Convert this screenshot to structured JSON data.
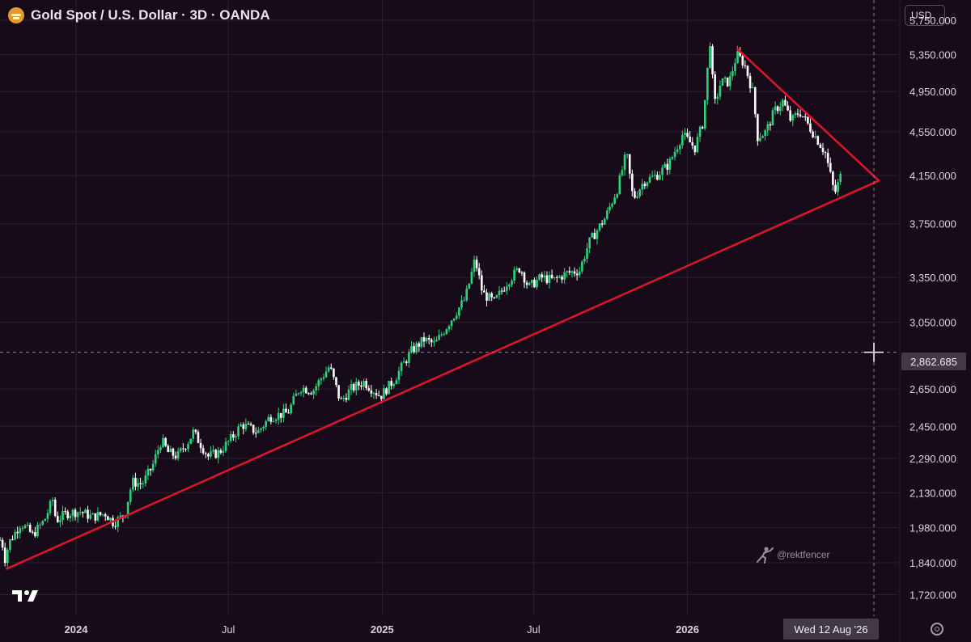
{
  "header": {
    "title": "Gold Spot / U.S. Dollar · 3D · OANDA",
    "currency": "USD"
  },
  "crosshair": {
    "price_label": "2,862.685",
    "date_label": "Wed 12 Aug '26"
  },
  "watermark": {
    "handle": "@rektfencer"
  },
  "colors": {
    "background": "#170b1a",
    "up_candle": "#2ed27a",
    "down_candle": "#ffffff",
    "trendline": "#e0142d",
    "grid": "#2a1f2d"
  },
  "chart_data": {
    "type": "candlestick",
    "scale": "log",
    "y_ticks": [
      5750,
      5350,
      4950,
      4550,
      4150,
      3750,
      3350,
      3050,
      2650,
      2450,
      2290,
      2130,
      1980,
      1840,
      1720
    ],
    "y_tick_labels": [
      "5,750.000",
      "5,350.000",
      "4,950.000",
      "4,550.000",
      "4,150.000",
      "3,750.000",
      "3,350.000",
      "3,050.000",
      "2,650.000",
      "2,450.000",
      "2,290.000",
      "2,130.000",
      "1,980.000",
      "1,840.000",
      "1,720.000"
    ],
    "x_ticks": [
      "2024-01-01",
      "2024-07-01",
      "2025-01-01",
      "2025-07-01",
      "2026-01-01"
    ],
    "x_tick_labels": [
      "2024",
      "Jul",
      "2025",
      "Jul",
      "2026"
    ],
    "x_range": [
      "2023-10-02",
      "2026-09-10"
    ],
    "y_range": [
      1650,
      6000
    ],
    "grid": true,
    "close_path": [
      [
        "2023-10-02",
        1930
      ],
      [
        "2023-10-05",
        1910
      ],
      [
        "2023-10-06",
        1830
      ],
      [
        "2023-10-13",
        1920
      ],
      [
        "2023-10-27",
        2000
      ],
      [
        "2023-11-10",
        1950
      ],
      [
        "2023-11-24",
        2010
      ],
      [
        "2023-12-04",
        2100
      ],
      [
        "2023-12-08",
        2010
      ],
      [
        "2023-12-20",
        2040
      ],
      [
        "2024-01-05",
        2050
      ],
      [
        "2024-01-20",
        2025
      ],
      [
        "2024-02-05",
        2040
      ],
      [
        "2024-02-15",
        2000
      ],
      [
        "2024-02-28",
        2035
      ],
      [
        "2024-03-08",
        2180
      ],
      [
        "2024-03-20",
        2170
      ],
      [
        "2024-04-01",
        2250
      ],
      [
        "2024-04-12",
        2380
      ],
      [
        "2024-04-20",
        2320
      ],
      [
        "2024-05-01",
        2300
      ],
      [
        "2024-05-15",
        2380
      ],
      [
        "2024-05-20",
        2420
      ],
      [
        "2024-06-07",
        2300
      ],
      [
        "2024-06-20",
        2320
      ],
      [
        "2024-07-05",
        2390
      ],
      [
        "2024-07-17",
        2460
      ],
      [
        "2024-08-05",
        2420
      ],
      [
        "2024-08-20",
        2500
      ],
      [
        "2024-09-10",
        2520
      ],
      [
        "2024-09-25",
        2660
      ],
      [
        "2024-10-10",
        2640
      ],
      [
        "2024-10-30",
        2780
      ],
      [
        "2024-11-12",
        2580
      ],
      [
        "2024-11-25",
        2650
      ],
      [
        "2024-12-10",
        2690
      ],
      [
        "2024-12-30",
        2610
      ],
      [
        "2025-01-15",
        2700
      ],
      [
        "2025-02-05",
        2870
      ],
      [
        "2025-02-20",
        2940
      ],
      [
        "2025-03-05",
        2910
      ],
      [
        "2025-03-20",
        3030
      ],
      [
        "2025-04-10",
        3200
      ],
      [
        "2025-04-16",
        3330
      ],
      [
        "2025-04-22",
        3480
      ],
      [
        "2025-05-01",
        3240
      ],
      [
        "2025-05-15",
        3180
      ],
      [
        "2025-06-01",
        3330
      ],
      [
        "2025-06-15",
        3420
      ],
      [
        "2025-06-25",
        3280
      ],
      [
        "2025-07-10",
        3350
      ],
      [
        "2025-07-25",
        3330
      ],
      [
        "2025-08-10",
        3380
      ],
      [
        "2025-08-25",
        3400
      ],
      [
        "2025-09-05",
        3600
      ],
      [
        "2025-09-25",
        3800
      ],
      [
        "2025-10-10",
        4050
      ],
      [
        "2025-10-20",
        4350
      ],
      [
        "2025-10-28",
        3950
      ],
      [
        "2025-11-10",
        4100
      ],
      [
        "2025-11-25",
        4150
      ],
      [
        "2025-12-10",
        4250
      ],
      [
        "2025-12-26",
        4520
      ],
      [
        "2026-01-10",
        4400
      ],
      [
        "2026-01-20",
        4650
      ],
      [
        "2026-01-28",
        5500
      ],
      [
        "2026-02-02",
        4800
      ],
      [
        "2026-02-10",
        5050
      ],
      [
        "2026-02-20",
        5050
      ],
      [
        "2026-03-01",
        5350
      ],
      [
        "2026-03-10",
        5250
      ],
      [
        "2026-03-20",
        4950
      ],
      [
        "2026-03-26",
        4500
      ],
      [
        "2026-04-05",
        4550
      ],
      [
        "2026-04-15",
        4750
      ],
      [
        "2026-04-25",
        4850
      ],
      [
        "2026-05-05",
        4650
      ],
      [
        "2026-05-15",
        4750
      ],
      [
        "2026-05-25",
        4620
      ],
      [
        "2026-06-05",
        4480
      ],
      [
        "2026-06-15",
        4350
      ],
      [
        "2026-06-22",
        4120
      ],
      [
        "2026-06-26",
        3990
      ],
      [
        "2026-07-03",
        4140
      ]
    ],
    "trendlines": [
      {
        "from": [
          "2023-10-09",
          1815
        ],
        "to": [
          "2026-08-18",
          4105
        ]
      },
      {
        "from": [
          "2026-03-01",
          5420
        ],
        "to": [
          "2026-08-18",
          4105
        ]
      }
    ],
    "crosshair_date": "2026-08-12",
    "crosshair_price": 2862.685
  }
}
